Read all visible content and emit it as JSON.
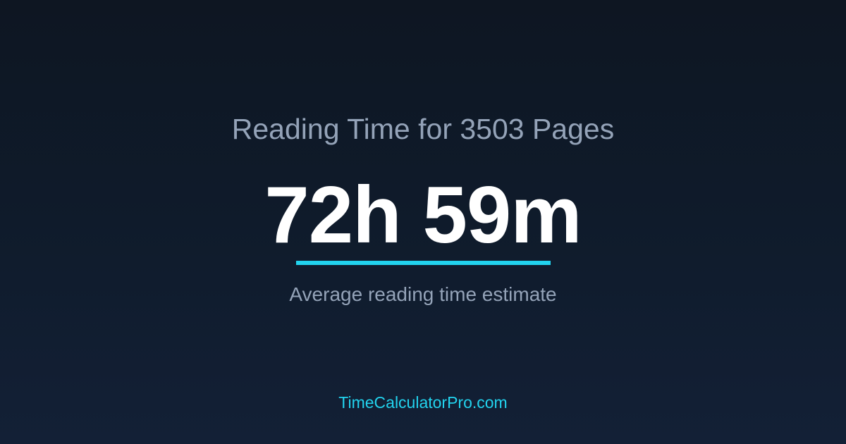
{
  "title": "Reading Time for 3503 Pages",
  "value": "72h 59m",
  "subtitle": "Average reading time estimate",
  "footer": "TimeCalculatorPro.com",
  "colors": {
    "accent": "#22d3ee",
    "muted": "#94a3b8",
    "background": "#0f1b2b"
  }
}
